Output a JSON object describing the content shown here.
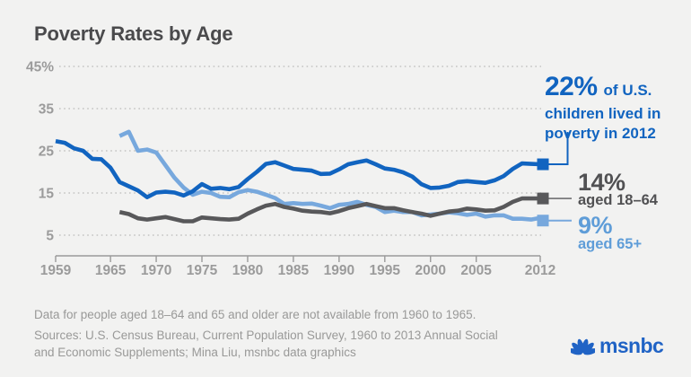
{
  "header": {
    "title": "Poverty Rates by Age"
  },
  "chart_data": {
    "type": "line",
    "title": "Poverty Rates by Age",
    "xlim": [
      1959,
      2012
    ],
    "ylim": [
      0,
      47
    ],
    "grid": "horizontal-dotted",
    "x_tick_years": [
      1959,
      1965,
      1970,
      1975,
      1980,
      1985,
      1990,
      1995,
      2000,
      2005,
      2012
    ],
    "x_tick_labels": [
      "1959",
      "1965",
      "1970",
      "1975",
      "1980",
      "1985",
      "1990",
      "1995",
      "2000",
      "2005",
      "2012"
    ],
    "y_tick_values": [
      45,
      35,
      25,
      15,
      5
    ],
    "y_tick_labels": [
      "45%",
      "35",
      "25",
      "15",
      "5"
    ],
    "series": [
      {
        "name": "U.S. children (under 18)",
        "color": "#1164c0",
        "start_year": 1959,
        "values": [
          27.3,
          26.9,
          25.6,
          25.0,
          23.1,
          23.0,
          21.0,
          17.6,
          16.6,
          15.6,
          14.0,
          15.1,
          15.3,
          15.1,
          14.4,
          15.4,
          17.1,
          16.0,
          16.2,
          15.9,
          16.4,
          18.3,
          20.0,
          21.9,
          22.3,
          21.5,
          20.7,
          20.5,
          20.3,
          19.5,
          19.6,
          20.6,
          21.8,
          22.3,
          22.7,
          21.8,
          20.8,
          20.5,
          19.9,
          18.9,
          17.1,
          16.2,
          16.3,
          16.7,
          17.6,
          17.8,
          17.6,
          17.4,
          18.0,
          19.0,
          20.7,
          22.0,
          21.9,
          21.8
        ]
      },
      {
        "name": "aged 18–64",
        "color": "#58585a",
        "start_year": 1966,
        "values": [
          10.5,
          10.0,
          9.0,
          8.7,
          9.0,
          9.3,
          8.8,
          8.3,
          8.3,
          9.2,
          9.0,
          8.8,
          8.7,
          8.9,
          10.1,
          11.1,
          12.0,
          12.4,
          11.7,
          11.3,
          10.8,
          10.6,
          10.5,
          10.2,
          10.7,
          11.4,
          11.9,
          12.4,
          11.9,
          11.4,
          11.4,
          10.9,
          10.5,
          10.1,
          9.6,
          10.1,
          10.6,
          10.8,
          11.3,
          11.1,
          10.8,
          10.9,
          11.7,
          12.9,
          13.7,
          13.7,
          13.7
        ]
      },
      {
        "name": "aged 65+",
        "color": "#77a8dd",
        "start_year": 1966,
        "values": [
          28.5,
          29.5,
          25.0,
          25.3,
          24.6,
          21.6,
          18.6,
          16.3,
          14.6,
          15.3,
          15.0,
          14.1,
          14.0,
          15.2,
          15.7,
          15.3,
          14.6,
          13.8,
          12.4,
          12.6,
          12.4,
          12.5,
          12.0,
          11.4,
          12.2,
          12.4,
          12.9,
          12.2,
          11.7,
          10.5,
          10.8,
          10.5,
          10.5,
          9.7,
          9.9,
          10.1,
          10.4,
          10.2,
          9.8,
          10.1,
          9.4,
          9.7,
          9.7,
          8.9,
          8.9,
          8.7,
          9.1
        ]
      }
    ]
  },
  "annotations": {
    "children": {
      "value": "22%",
      "rest": "of U.S.",
      "line2": "children lived in",
      "line3": "poverty in 2012",
      "color": "#1164c0"
    },
    "adults": {
      "value": "14%",
      "label": "aged 18–64",
      "color": "#515153"
    },
    "seniors": {
      "value": "9%",
      "label": "aged 65+",
      "color": "#5f9dd8"
    }
  },
  "footnotes": {
    "note": "Data for people aged 18–64 and 65 and older are not available from 1960 to 1965.",
    "sources": "Sources: U.S. Census Bureau, Current Population Survey, 1960 to 2013 Annual Social and Economic Supplements; Mina Liu, msnbc data graphics"
  },
  "logo": {
    "text": "msnbc",
    "color": "#2063c5"
  },
  "colors": {
    "background": "#f2f2f1",
    "title": "#4a4a4c",
    "gridline": "#c3c3c2",
    "axis": "#9a9a9a",
    "tick_label": "#9b9b9b",
    "footnote": "#999998"
  }
}
